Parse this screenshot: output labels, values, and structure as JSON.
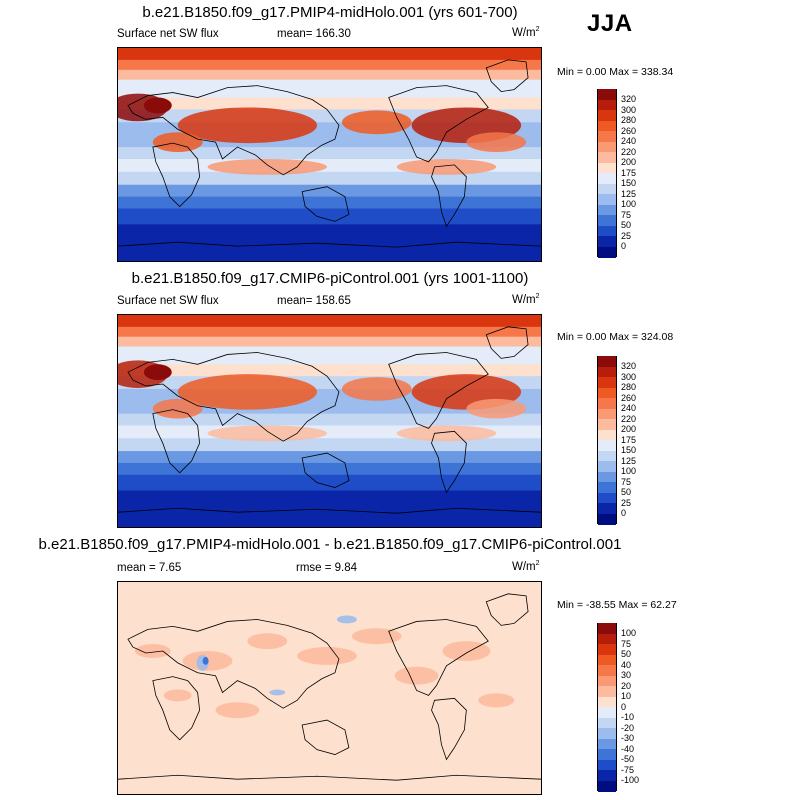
{
  "season": "JJA",
  "panels": [
    {
      "title": "b.e21.B1850.f09_g17.PMIP4-midHolo.001 (yrs 601-700)",
      "left_label": "Surface net SW flux",
      "center_label": "mean= 166.30",
      "units": "W/m",
      "units_sup": "2",
      "stats": "Min =   0.00 Max = 338.34",
      "colorbar": {
        "labels": [
          "320",
          "300",
          "280",
          "260",
          "240",
          "220",
          "200",
          "175",
          "150",
          "125",
          "100",
          "75",
          "50",
          "25",
          "0"
        ],
        "colors": [
          "#8b0a0a",
          "#b61e0b",
          "#d9360f",
          "#ef5a22",
          "#f5774a",
          "#f99a74",
          "#fcbb9f",
          "#fde0cd",
          "#e3ecf8",
          "#c3d6f2",
          "#9bbcec",
          "#6a98e2",
          "#3e74d6",
          "#1f4dc8",
          "#0a25a8",
          "#000d80"
        ]
      },
      "map": {
        "type": "shortwave-flux"
      }
    },
    {
      "title": "b.e21.B1850.f09_g17.CMIP6-piControl.001 (yrs 1001-1100)",
      "left_label": "Surface net SW flux",
      "center_label": "mean= 158.65",
      "units": "W/m",
      "units_sup": "2",
      "stats": "Min =   0.00 Max = 324.08",
      "colorbar": {
        "labels": [
          "320",
          "300",
          "280",
          "260",
          "240",
          "220",
          "200",
          "175",
          "150",
          "125",
          "100",
          "75",
          "50",
          "25",
          "0"
        ],
        "colors": [
          "#8b0a0a",
          "#b61e0b",
          "#d9360f",
          "#ef5a22",
          "#f5774a",
          "#f99a74",
          "#fcbb9f",
          "#fde0cd",
          "#e3ecf8",
          "#c3d6f2",
          "#9bbcec",
          "#6a98e2",
          "#3e74d6",
          "#1f4dc8",
          "#0a25a8",
          "#000d80"
        ]
      },
      "map": {
        "type": "shortwave-flux"
      }
    },
    {
      "title": "b.e21.B1850.f09_g17.PMIP4-midHolo.001 - b.e21.B1850.f09_g17.CMIP6-piControl.001",
      "left_label": "mean =   7.65",
      "center_label": "rmse =   9.84",
      "units": "W/m",
      "units_sup": "2",
      "stats": "Min = -38.55 Max =  62.27",
      "colorbar": {
        "labels": [
          "100",
          "75",
          "50",
          "40",
          "30",
          "20",
          "10",
          "0",
          "-10",
          "-20",
          "-30",
          "-40",
          "-50",
          "-75",
          "-100"
        ],
        "colors": [
          "#8b0a0a",
          "#b61e0b",
          "#d9360f",
          "#ef5a22",
          "#f5774a",
          "#f99a74",
          "#fcbb9f",
          "#fde0cd",
          "#e3ecf8",
          "#c3d6f2",
          "#9bbcec",
          "#6a98e2",
          "#3e74d6",
          "#1f4dc8",
          "#0a25a8",
          "#000d80"
        ]
      },
      "map": {
        "type": "difference"
      }
    }
  ]
}
